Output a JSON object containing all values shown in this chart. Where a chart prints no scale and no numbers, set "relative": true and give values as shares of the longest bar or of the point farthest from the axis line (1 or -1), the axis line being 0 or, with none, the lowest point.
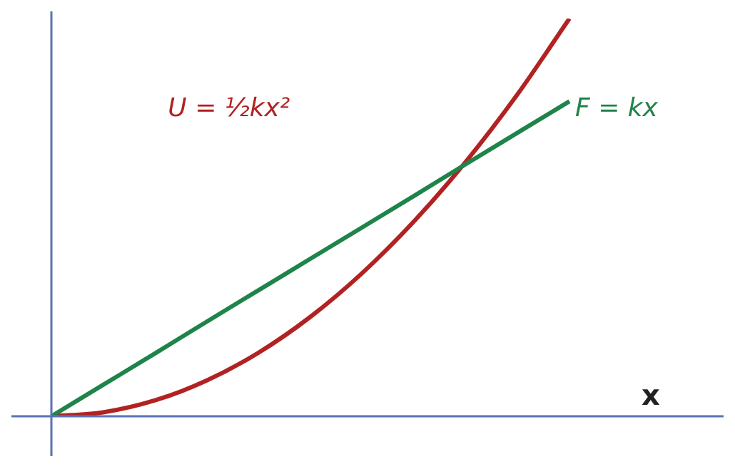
{
  "chart_data": {
    "type": "line",
    "relative": true,
    "xlabel": "x",
    "legend": false,
    "marker": "none",
    "categories": [
      null,
      null,
      null,
      null,
      null,
      null,
      null,
      null,
      null,
      null,
      null
    ],
    "series": [
      {
        "name": "F = kx",
        "color": "#1e8449",
        "values": [
          0,
          0.079,
          0.158,
          0.238,
          0.317,
          0.396,
          0.475,
          0.554,
          0.634,
          0.713,
          0.792
        ]
      },
      {
        "name": "U = ½kx²",
        "color": "#b22222",
        "values": [
          0,
          0.01,
          0.04,
          0.09,
          0.16,
          0.25,
          0.36,
          0.49,
          0.64,
          0.81,
          1
        ]
      }
    ]
  }
}
